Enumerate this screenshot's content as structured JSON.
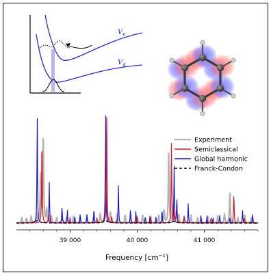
{
  "colors": {
    "experiment": "#b3b3b3",
    "semiclassical": "#e0141e",
    "global_harmonic": "#1616d4",
    "franck_condon": "#000000",
    "potential_curve": "#2a2ad0",
    "orbital_blue": "#6f6fff",
    "orbital_red": "#ff7b7b",
    "atom": "#333333"
  },
  "inset_diagram": {
    "upper_curve_label_base": "V",
    "upper_curve_label_sub": "e",
    "lower_curve_label_base": "V",
    "lower_curve_label_sub": "g"
  },
  "molecule": {
    "name_icon": "benzene-molecule-orbital-icon"
  },
  "chart_data": {
    "type": "line",
    "title": "",
    "xlabel": "Frequency [cm",
    "xlabel_superscript": "−1",
    "xlabel_suffix": "]",
    "ylabel": "",
    "xlim": [
      38200,
      41800
    ],
    "ylim": [
      0,
      1.0
    ],
    "xticks": [
      39000,
      40000,
      41000
    ],
    "xtick_labels": [
      "39 000",
      "40 000",
      "41 000"
    ],
    "grid": false,
    "legend_position": "right",
    "series": [
      {
        "name": "Experiment",
        "key": "experiment",
        "peaks": [
          [
            38280,
            0.05
          ],
          [
            38350,
            0.04
          ],
          [
            38420,
            0.06
          ],
          [
            38500,
            0.08
          ],
          [
            38560,
            0.45
          ],
          [
            38600,
            0.8
          ],
          [
            38650,
            0.12
          ],
          [
            38720,
            0.06
          ],
          [
            38800,
            0.05
          ],
          [
            38880,
            0.07
          ],
          [
            38950,
            0.05
          ],
          [
            39050,
            0.06
          ],
          [
            39150,
            0.05
          ],
          [
            39250,
            0.07
          ],
          [
            39350,
            0.06
          ],
          [
            39450,
            0.08
          ],
          [
            39530,
            0.55
          ],
          [
            39600,
            0.1
          ],
          [
            39700,
            0.08
          ],
          [
            39820,
            0.07
          ],
          [
            39900,
            0.06
          ],
          [
            40000,
            0.06
          ],
          [
            40080,
            0.07
          ],
          [
            40200,
            0.06
          ],
          [
            40320,
            0.07
          ],
          [
            40400,
            0.12
          ],
          [
            40470,
            0.62
          ],
          [
            40530,
            0.15
          ],
          [
            40620,
            0.08
          ],
          [
            40700,
            0.06
          ],
          [
            40800,
            0.07
          ],
          [
            40900,
            0.05
          ],
          [
            41050,
            0.06
          ],
          [
            41200,
            0.07
          ],
          [
            41300,
            0.08
          ],
          [
            41380,
            0.28
          ],
          [
            41500,
            0.05
          ],
          [
            41600,
            0.07
          ],
          [
            41700,
            0.05
          ]
        ]
      },
      {
        "name": "Semiclassical",
        "key": "semiclassical",
        "peaks": [
          [
            38580,
            0.78
          ],
          [
            38680,
            0.08
          ],
          [
            39000,
            0.05
          ],
          [
            39400,
            0.05
          ],
          [
            39545,
            0.98
          ],
          [
            39620,
            0.06
          ],
          [
            40000,
            0.05
          ],
          [
            40200,
            0.05
          ],
          [
            40510,
            0.7
          ],
          [
            40560,
            0.12
          ],
          [
            40700,
            0.06
          ],
          [
            41100,
            0.05
          ],
          [
            41440,
            0.27
          ],
          [
            41600,
            0.04
          ]
        ]
      },
      {
        "name": "Global harmonic",
        "key": "global_harmonic",
        "peaks": [
          [
            38510,
            0.97
          ],
          [
            38690,
            0.36
          ],
          [
            38880,
            0.15
          ],
          [
            38960,
            0.11
          ],
          [
            39070,
            0.06
          ],
          [
            39150,
            0.08
          ],
          [
            39250,
            0.07
          ],
          [
            39355,
            0.13
          ],
          [
            39530,
            0.98
          ],
          [
            39720,
            0.33
          ],
          [
            39900,
            0.13
          ],
          [
            39980,
            0.1
          ],
          [
            40120,
            0.06
          ],
          [
            40190,
            0.06
          ],
          [
            40280,
            0.05
          ],
          [
            40370,
            0.12
          ],
          [
            40550,
            0.51
          ],
          [
            40590,
            0.22
          ],
          [
            40760,
            0.17
          ],
          [
            40950,
            0.07
          ],
          [
            41040,
            0.06
          ],
          [
            41130,
            0.05
          ],
          [
            41230,
            0.07
          ],
          [
            41380,
            0.05
          ],
          [
            41570,
            0.11
          ],
          [
            41720,
            0.08
          ]
        ]
      },
      {
        "name": "Franck-Condon",
        "key": "franck_condon",
        "peaks": [
          [
            38510,
            0.02
          ],
          [
            39530,
            0.02
          ],
          [
            40550,
            0.015
          ]
        ]
      }
    ]
  }
}
